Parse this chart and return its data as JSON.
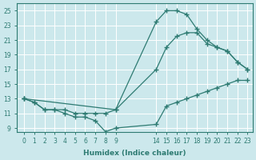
{
  "xlabel": "Humidex (Indice chaleur)",
  "bg_color": "#cce8ec",
  "grid_color": "#ffffff",
  "line_color": "#2e7b72",
  "curve1_x_pos": [
    0,
    1,
    2,
    3,
    4,
    5,
    6,
    7,
    8,
    9,
    14,
    15,
    16,
    17,
    18,
    19,
    20,
    21,
    22,
    23
  ],
  "curve1_y": [
    13,
    12.5,
    11.5,
    11.5,
    11,
    10.5,
    10.5,
    10,
    8.5,
    9,
    9.5,
    12,
    12.5,
    13,
    13.5,
    14,
    14.5,
    15,
    15.5,
    15.5
  ],
  "curve2_x_pos": [
    0,
    1,
    2,
    3,
    4,
    5,
    6,
    7,
    8,
    9,
    14,
    15,
    16,
    17,
    18,
    19,
    20,
    21,
    22,
    23
  ],
  "curve2_y": [
    13,
    12.5,
    11.5,
    11.5,
    11.5,
    11,
    11,
    11,
    11,
    11.5,
    17,
    20,
    21.5,
    22,
    22,
    20.5,
    20,
    19.5,
    18,
    17
  ],
  "curve3_x_pos": [
    0,
    9,
    14,
    15,
    16,
    17,
    18,
    19,
    20,
    21,
    22,
    23
  ],
  "curve3_y": [
    13,
    11.5,
    23.5,
    25,
    25,
    24.5,
    22.5,
    21,
    20,
    19.5,
    18,
    17
  ],
  "xtick_labels": [
    "0",
    "1",
    "2",
    "3",
    "4",
    "5",
    "6",
    "7",
    "8",
    "9",
    "14",
    "15",
    "16",
    "17",
    "18",
    "19",
    "20",
    "21",
    "22",
    "23"
  ],
  "xtick_pos": [
    0,
    1,
    2,
    3,
    4,
    5,
    6,
    7,
    8,
    9,
    14,
    15,
    16,
    17,
    18,
    19,
    20,
    21,
    22,
    23
  ],
  "yticks": [
    9,
    11,
    13,
    15,
    17,
    19,
    21,
    23,
    25
  ],
  "xlim": [
    -0.5,
    24
  ],
  "ylim": [
    8.5,
    26
  ],
  "label_fontsize": 6.5,
  "tick_fontsize": 5.5,
  "marker": "+"
}
